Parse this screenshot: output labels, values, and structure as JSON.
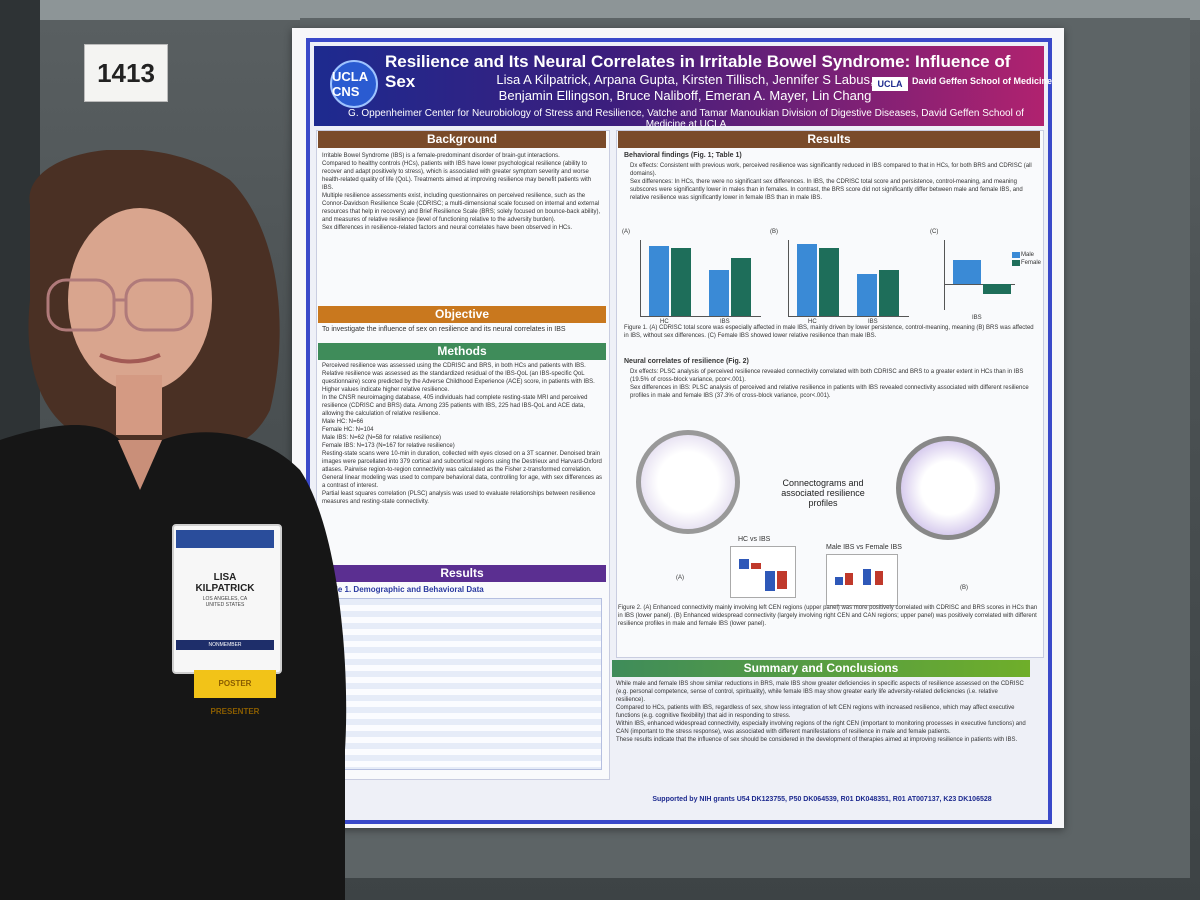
{
  "board": {
    "number": "1413"
  },
  "poster": {
    "title": "Resilience and Its Neural Correlates in Irritable Bowel Syndrome: Influence of Sex",
    "authors_line1": "Lisa A Kilpatrick, Arpana Gupta, Kirsten Tillisch, Jennifer S Labus,",
    "authors_line2": "Benjamin Ellingson, Bruce Naliboff, Emeran A. Mayer, Lin Chang",
    "logo": "UCLA CNS",
    "ucla": "UCLA",
    "school": "David Geffen School of Medicine",
    "affiliation": "G. Oppenheimer Center for Neurobiology of Stress and Resilience, Vatche and Tamar Manoukian Division of Digestive Diseases, David Geffen School of Medicine at UCLA",
    "sections": {
      "background": "Background",
      "objective": "Objective",
      "methods": "Methods",
      "results_left": "Results",
      "results_right": "Results",
      "summary": "Summary and Conclusions"
    },
    "background_text": [
      "Irritable Bowel Syndrome (IBS) is a female-predominant disorder of brain-gut interactions.",
      "Compared to healthy controls (HCs), patients with IBS have lower psychological resilience (ability to recover and adapt positively to stress), which is associated with greater symptom severity and worse health-related quality of life (QoL). Treatments aimed at improving resilience may benefit patients with IBS.",
      "Multiple resilience assessments exist, including questionnaires on perceived resilience, such as the Connor-Davidson Resilience Scale (CDRISC; a multi-dimensional scale focused on internal and external resources that help in recovery) and Brief Resilience Scale (BRS; solely focused on bounce-back ability), and measures of relative resilience (level of functioning relative to the adversity burden).",
      "Sex differences in resilience-related factors and neural correlates have been observed in HCs."
    ],
    "objective_text": "To investigate the influence of sex on resilience and its neural correlates in IBS",
    "methods_text": [
      "Perceived resilience was assessed using the CDRISC and BRS, in both HCs and patients with IBS.",
      "Relative resilience was assessed as the standardized residual of the IBS-QoL (an IBS-specific QoL questionnaire) score predicted by the Adverse Childhood Experience (ACE) score, in patients with IBS. Higher values indicate higher relative resilience.",
      "In the CNSR neuroimaging database, 405 individuals had complete resting-state MRI and perceived resilience (CDRISC and BRS) data. Among 235 patients with IBS, 225 had IBS-QoL and ACE data, allowing the calculation of relative resilience.",
      "Male HC: N=66",
      "Female HC: N=104",
      "Male IBS: N=62 (N=58 for relative resilience)",
      "Female IBS: N=173 (N=167 for relative resilience)",
      "Resting-state scans were 10-min in duration, collected with eyes closed on a 3T scanner. Denoised brain images were parcellated into 379 cortical and subcortical regions using the Destrieux and Harvard-Oxford atlases. Pairwise region-to-region connectivity was calculated as the Fisher z-transformed correlation.",
      "General linear modeling was used to compare behavioral data, controlling for age, with sex differences as a contrast of interest.",
      "Partial least squares correlation (PLSC) analysis was used to evaluate relationships between resilience measures and resting-state connectivity."
    ],
    "table_title": "Table 1. Demographic and Behavioral Data",
    "behavioral_heading": "Behavioral findings (Fig. 1; Table 1)",
    "behavioral_text": [
      "Dx effects: Consistent with previous work, perceived resilience was significantly reduced in IBS compared to that in HCs, for both BRS and CDRISC (all domains).",
      "Sex differences: In HCs, there were no significant sex differences. In IBS, the CDRISC total score and persistence, control-meaning, and meaning subscores were significantly lower in males than in females. In contrast, the BRS score did not significantly differ between male and female IBS, and relative resilience was significantly lower in female IBS than in male IBS."
    ],
    "figure1_caption": "Figure 1. (A) CDRISC total score was especially affected in male IBS, mainly driven by lower persistence, control-meaning, meaning (B) BRS was affected in IBS, without sex differences. (C) Female IBS showed lower relative resilience than male IBS.",
    "neural_heading": "Neural correlates of resilience (Fig. 2)",
    "neural_text": [
      "Dx effects: PLSC analysis of perceived resilience revealed connectivity correlated with both CDRISC and BRS to a greater extent in HCs than in IBS (19.5% of cross-block variance, pcor<.001).",
      "Sex differences in IBS: PLSC analysis of perceived and relative resilience in patients with IBS revealed connectivity associated with different resilience profiles in male and female IBS (37.3% of cross-block variance, pcor<.001)."
    ],
    "connectogram_label": "Connectograms and associated resilience profiles",
    "hc_vs_ibs": "HC vs IBS",
    "male_vs_female": "Male IBS vs Female IBS",
    "figure2_caption": "Figure 2. (A) Enhanced connectivity mainly involving left CEN regions (upper panel) was more positively correlated with CDRISC and BRS scores in HCs than in IBS (lower panel). (B) Enhanced widespread connectivity (largely involving right CEN and CAN regions; upper panel) was positively correlated with different resilience profiles in male and female IBS (lower panel).",
    "summary_text": [
      "While male and female IBS show similar reductions in BRS, male IBS show greater deficiencies in specific aspects of resilience assessed on the CDRISC (e.g. personal competence, sense of control, spirituality), while female IBS may show greater early life adversity-related deficiencies (i.e. relative resilience).",
      "Compared to HCs, patients with IBS, regardless of sex, show less integration of left CEN regions with increased resilience, which may affect executive functions (e.g. cognitive flexibility) that aid in responding to stress.",
      "Within IBS, enhanced widespread connectivity, especially involving regions of the right CEN (important to monitoring processes in executive functions) and CAN (important to the stress response), was associated with different manifestations of resilience in male and female patients.",
      "These results indicate that the influence of sex should be considered in the development of therapies aimed at improving resilience in patients with IBS."
    ],
    "funding": "Supported by NIH grants U54 DK123755, P50 DK064539, R01 DK048351, R01 AT007137, K23 DK106528",
    "fig_letters": [
      "(A)",
      "(B)",
      "(C)"
    ],
    "axis_labels": [
      "CDRISC Total Score",
      "BRS Score",
      "Relative Resilience"
    ],
    "legend": [
      "Male",
      "Female"
    ],
    "x_labels": [
      "HC",
      "IBS"
    ]
  },
  "badge": {
    "name_line1": "LISA",
    "name_line2": "KILPATRICK",
    "location_line1": "LOS ANGELES, CA",
    "location_line2": "UNITED STATES",
    "footer": "NONMEMBER",
    "ribbon": "POSTER PRESENTER"
  },
  "colors": {
    "header_brown": "#7a4b2a",
    "header_orange": "#c9781e",
    "header_green": "#3f8c5a",
    "header_purple": "#5b2f91",
    "header_lime": "#6fae2a"
  }
}
